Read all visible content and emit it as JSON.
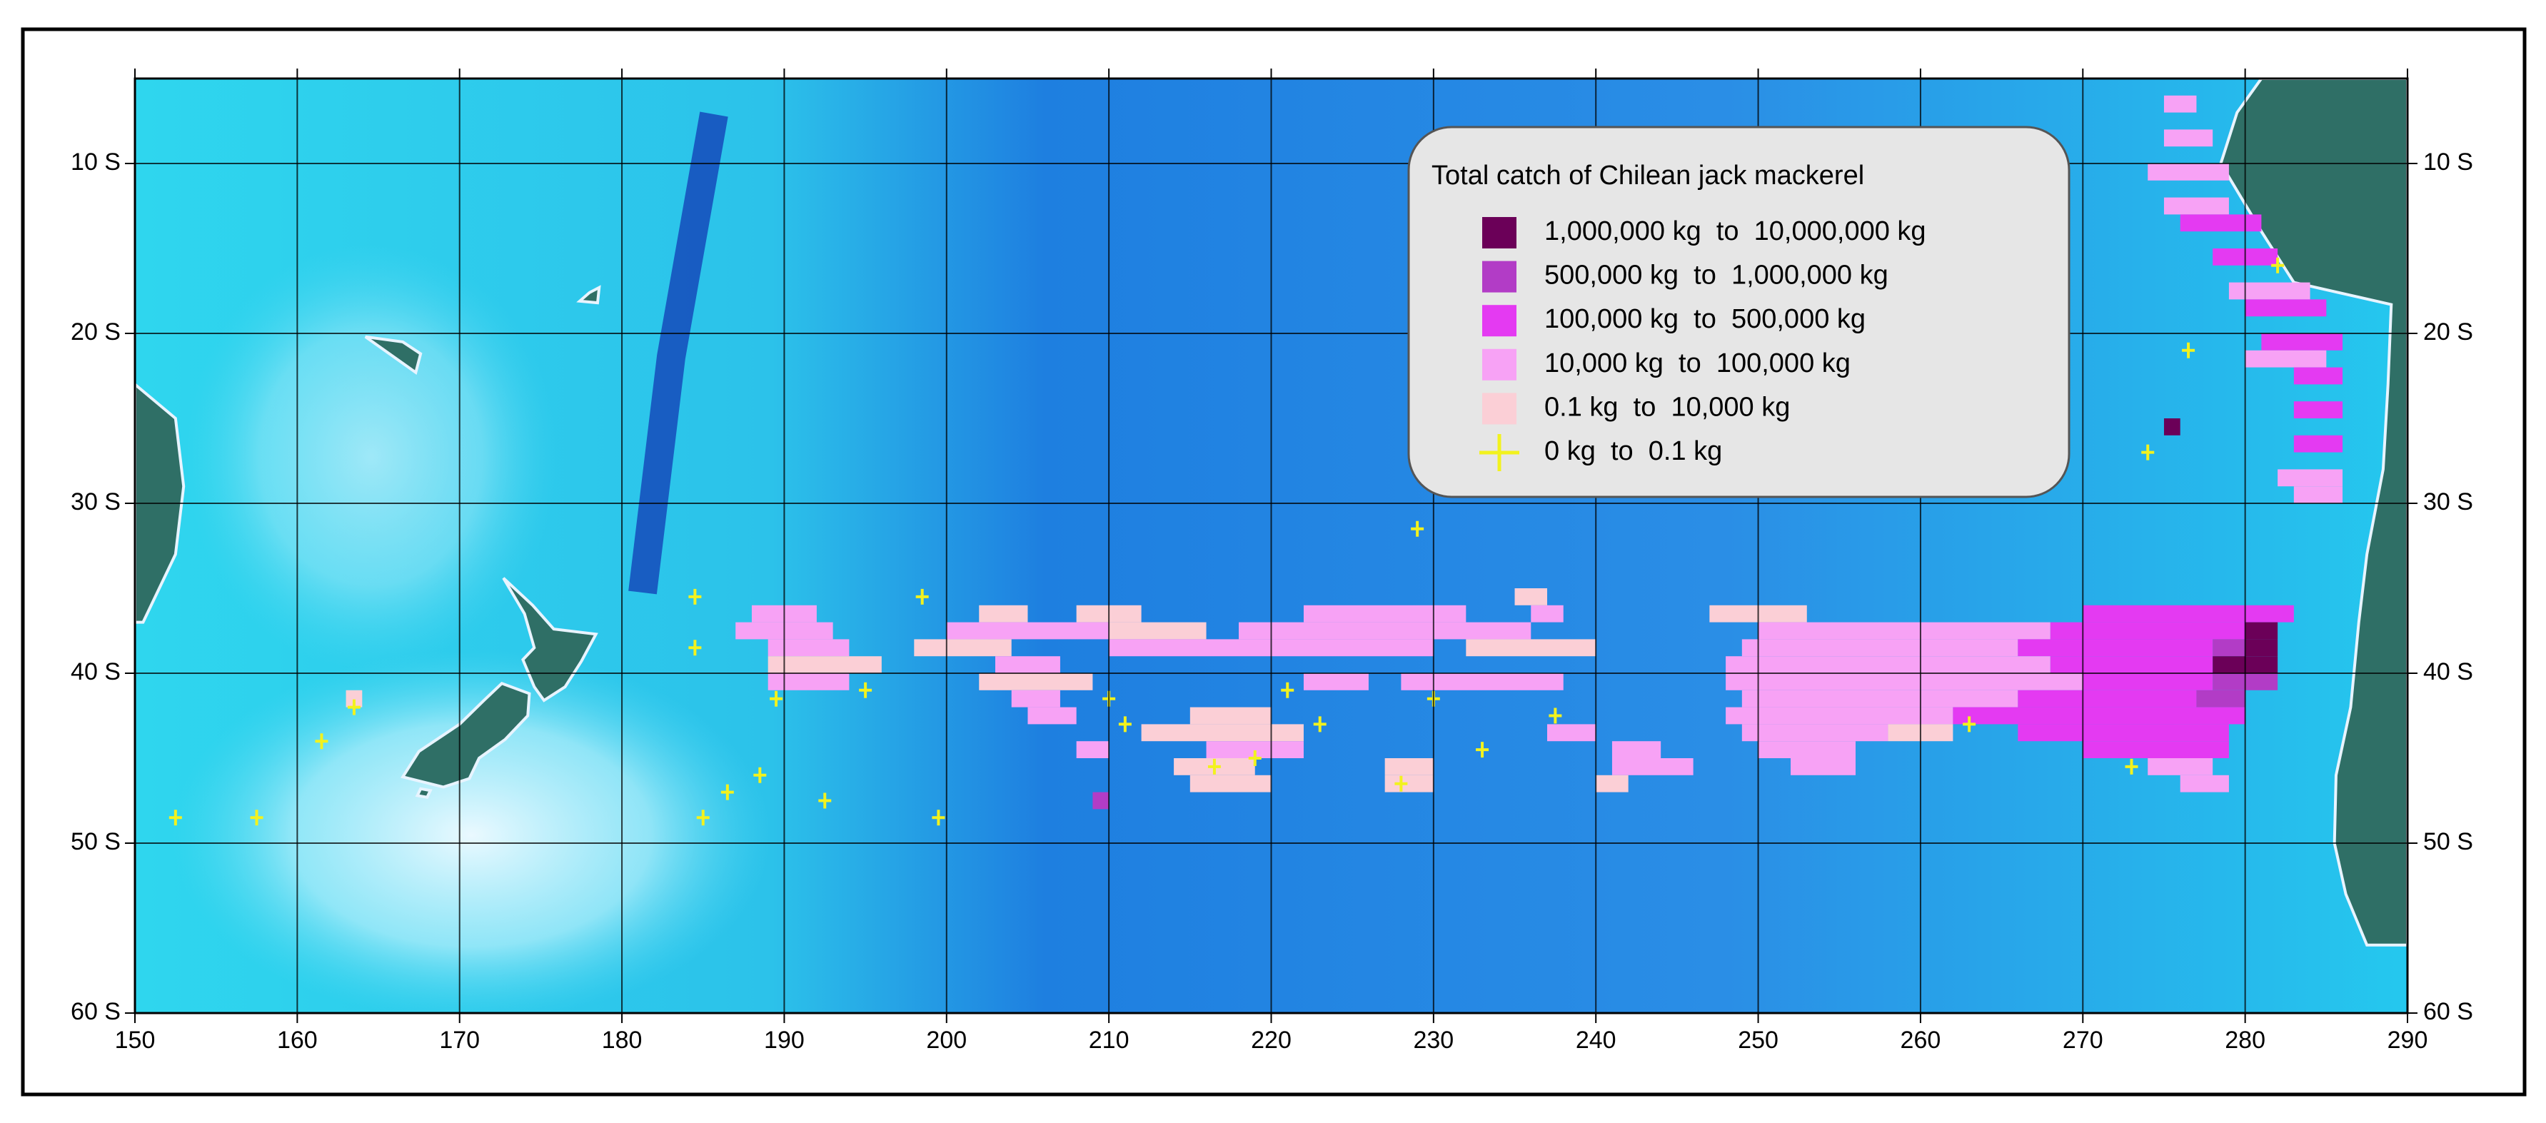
{
  "chart_data": {
    "type": "map",
    "xlim": [
      150,
      290
    ],
    "ylim": [
      -60,
      -5
    ],
    "xticks": [
      150,
      160,
      170,
      180,
      190,
      200,
      210,
      220,
      230,
      240,
      250,
      260,
      270,
      280,
      290
    ],
    "yticks": [
      {
        "value": -10,
        "label": "10 S"
      },
      {
        "value": -20,
        "label": "20 S"
      },
      {
        "value": -30,
        "label": "30 S"
      },
      {
        "value": -40,
        "label": "40 S"
      },
      {
        "value": -50,
        "label": "50 S"
      },
      {
        "value": -60,
        "label": "60 S"
      }
    ],
    "grid": true,
    "legend": {
      "title": "Total catch of Chilean jack mackerel",
      "entries": [
        {
          "label": "1,000,000 kg  to  10,000,000 kg",
          "color": "#6b0058"
        },
        {
          "label": "500,000 kg  to  1,000,000 kg",
          "color": "#b23cc6"
        },
        {
          "label": "100,000 kg  to  500,000 kg",
          "color": "#e43af2"
        },
        {
          "label": "10,000 kg  to  100,000 kg",
          "color": "#f7a2f5"
        },
        {
          "label": "0.1 kg  to  10,000 kg",
          "color": "#fbcfd6"
        },
        {
          "label": "0 kg  to  0.1 kg",
          "color": "#f2f21e"
        }
      ]
    },
    "cells": [
      [
        -36,
        247,
        253,
        4
      ],
      [
        -36,
        270,
        283,
        2
      ],
      [
        -37,
        250,
        268,
        3
      ],
      [
        -37,
        268,
        280,
        2
      ],
      [
        -37,
        280,
        282,
        0
      ],
      [
        -38,
        249,
        266,
        3
      ],
      [
        -38,
        266,
        278,
        2
      ],
      [
        -38,
        278,
        280,
        1
      ],
      [
        -38,
        280,
        282,
        0
      ],
      [
        -39,
        248,
        268,
        3
      ],
      [
        -39,
        268,
        278,
        2
      ],
      [
        -39,
        278,
        282,
        0
      ],
      [
        -40,
        248,
        270,
        3
      ],
      [
        -40,
        270,
        278,
        2
      ],
      [
        -40,
        278,
        282,
        1
      ],
      [
        -41,
        249,
        266,
        3
      ],
      [
        -41,
        266,
        277,
        2
      ],
      [
        -41,
        277,
        280,
        1
      ],
      [
        -42,
        248,
        262,
        3
      ],
      [
        -42,
        262,
        280,
        2
      ],
      [
        -43,
        249,
        258,
        3
      ],
      [
        -43,
        258,
        262,
        4
      ],
      [
        -43,
        266,
        279,
        2
      ],
      [
        -44,
        250,
        256,
        3
      ],
      [
        -44,
        270,
        279,
        2
      ],
      [
        -45,
        252,
        256,
        3
      ],
      [
        -45,
        274,
        278,
        3
      ],
      [
        -46,
        276,
        279,
        3
      ],
      [
        -36,
        188,
        192,
        3
      ],
      [
        -37,
        187,
        193,
        3
      ],
      [
        -38,
        189,
        194,
        3
      ],
      [
        -39,
        189,
        196,
        4
      ],
      [
        -40,
        189,
        194,
        3
      ],
      [
        -36,
        202,
        205,
        4
      ],
      [
        -36,
        208,
        212,
        4
      ],
      [
        -36,
        222,
        232,
        3
      ],
      [
        -37,
        200,
        210,
        3
      ],
      [
        -37,
        210,
        216,
        4
      ],
      [
        -37,
        218,
        236,
        3
      ],
      [
        -38,
        198,
        204,
        4
      ],
      [
        -38,
        210,
        230,
        3
      ],
      [
        -38,
        232,
        240,
        4
      ],
      [
        -39,
        203,
        207,
        3
      ],
      [
        -40,
        202,
        209,
        4
      ],
      [
        -40,
        222,
        226,
        3
      ],
      [
        -40,
        228,
        238,
        3
      ],
      [
        -41,
        204,
        207,
        3
      ],
      [
        -42,
        205,
        208,
        3
      ],
      [
        -42,
        215,
        220,
        4
      ],
      [
        -43,
        212,
        222,
        4
      ],
      [
        -44,
        208,
        210,
        3
      ],
      [
        -44,
        216,
        222,
        3
      ],
      [
        -45,
        214,
        219,
        4
      ],
      [
        -46,
        215,
        220,
        4
      ],
      [
        -47,
        209,
        210,
        1
      ],
      [
        -45,
        227,
        230,
        4
      ],
      [
        -46,
        227,
        230,
        4
      ],
      [
        -36,
        236,
        238,
        3
      ],
      [
        -35,
        235,
        237,
        4
      ],
      [
        -43,
        237,
        240,
        3
      ],
      [
        -44,
        241,
        244,
        3
      ],
      [
        -45,
        241,
        246,
        3
      ],
      [
        -46,
        240,
        242,
        4
      ],
      [
        -6,
        275,
        277,
        3
      ],
      [
        -8,
        275,
        278,
        3
      ],
      [
        -10,
        274,
        279,
        3
      ],
      [
        -12,
        275,
        279,
        3
      ],
      [
        -13,
        276,
        281,
        2
      ],
      [
        -15,
        278,
        282,
        2
      ],
      [
        -17,
        279,
        284,
        3
      ],
      [
        -18,
        280,
        285,
        2
      ],
      [
        -20,
        281,
        286,
        2
      ],
      [
        -21,
        280,
        285,
        3
      ],
      [
        -22,
        283,
        286,
        2
      ],
      [
        -24,
        283,
        286,
        2
      ],
      [
        -26,
        283,
        286,
        2
      ],
      [
        -28,
        282,
        286,
        3
      ],
      [
        -29,
        283,
        286,
        3
      ],
      [
        -25,
        275,
        276,
        0
      ],
      [
        -41,
        163,
        164,
        4
      ]
    ],
    "crosses": [
      [
        152.5,
        -48.5
      ],
      [
        157.5,
        -48.5
      ],
      [
        161.5,
        -44
      ],
      [
        163.5,
        -42
      ],
      [
        184.5,
        -35.5
      ],
      [
        184.5,
        -38.5
      ],
      [
        186.5,
        -47
      ],
      [
        185,
        -48.5
      ],
      [
        188.5,
        -46
      ],
      [
        189.5,
        -41.5
      ],
      [
        192.5,
        -47.5
      ],
      [
        195,
        -41
      ],
      [
        199.5,
        -48.5
      ],
      [
        198.5,
        -35.5
      ],
      [
        210,
        -41.5
      ],
      [
        211,
        -43
      ],
      [
        216.5,
        -45.5
      ],
      [
        219,
        -45
      ],
      [
        221,
        -41
      ],
      [
        223,
        -43
      ],
      [
        228,
        -46.5
      ],
      [
        229,
        -31.5
      ],
      [
        230,
        -41.5
      ],
      [
        233,
        -44.5
      ],
      [
        237.5,
        -42.5
      ],
      [
        263,
        -43
      ],
      [
        273,
        -45.5
      ],
      [
        276.5,
        -21
      ],
      [
        274,
        -27
      ],
      [
        282,
        -16
      ]
    ]
  }
}
